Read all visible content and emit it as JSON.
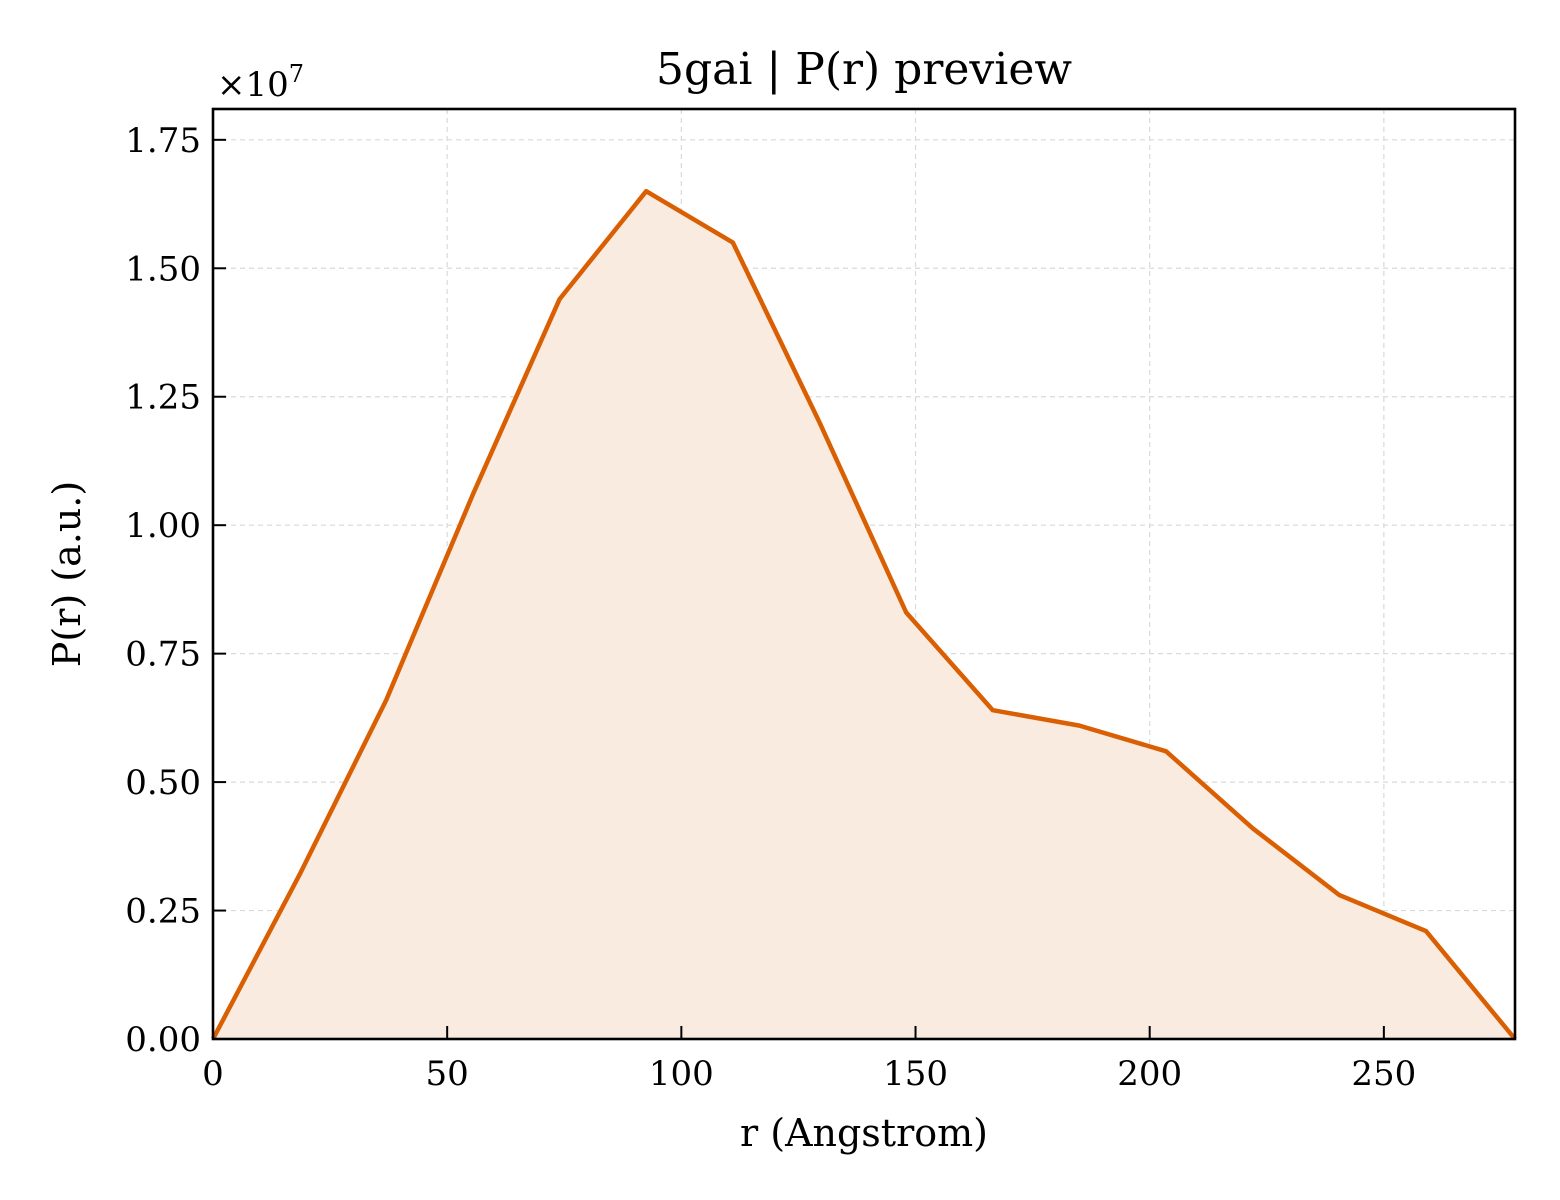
{
  "chart_data": {
    "type": "area",
    "title": "5gai | P(r) preview",
    "xlabel": "r (Angstrom)",
    "ylabel": "P(r) (a.u.)",
    "y_offset_label": "×10",
    "y_offset_exponent": "7",
    "xlim": [
      0,
      278
    ],
    "ylim": [
      0,
      1.81
    ],
    "x_ticks": [
      0,
      50,
      100,
      150,
      200,
      250
    ],
    "x_tick_labels": [
      "0",
      "50",
      "100",
      "150",
      "200",
      "250"
    ],
    "y_ticks": [
      0,
      0.25,
      0.5,
      0.75,
      1.0,
      1.25,
      1.5,
      1.75
    ],
    "y_tick_labels": [
      "0.00",
      "0.25",
      "0.50",
      "0.75",
      "1.00",
      "1.25",
      "1.50",
      "1.75"
    ],
    "grid": true,
    "series": [
      {
        "color": "#d95f02",
        "fill_color": "#f9ebe0",
        "x": [
          0,
          18.5,
          37,
          55.5,
          74,
          92.5,
          111,
          129.5,
          148,
          166.5,
          185,
          203.5,
          222,
          240.5,
          259,
          278
        ],
        "y": [
          0,
          0.32,
          0.66,
          1.06,
          1.44,
          1.65,
          1.55,
          1.2,
          0.83,
          0.64,
          0.61,
          0.56,
          0.41,
          0.28,
          0.21,
          0
        ]
      }
    ]
  }
}
